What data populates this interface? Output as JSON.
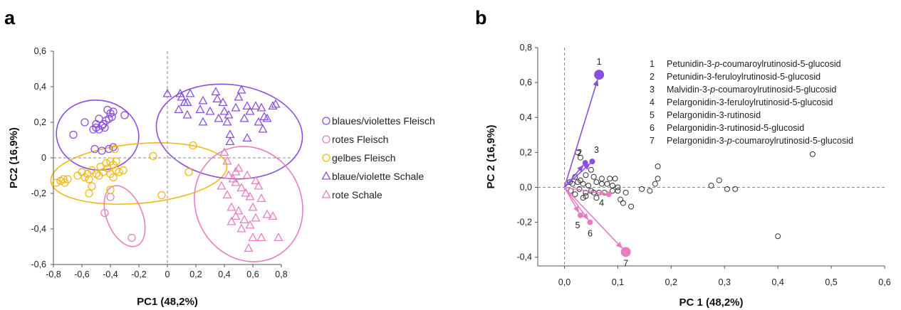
{
  "chart_data": [
    {
      "panel": "a",
      "type": "scatter",
      "xlabel": "PC1 (48,2%)",
      "ylabel": "PC2 (16,9%)",
      "xlim": [
        -0.8,
        0.8
      ],
      "ylim": [
        -0.6,
        0.6
      ],
      "xticks": [
        "-0,8",
        "-0,6",
        "-0,4",
        "-0,2",
        "0",
        "0,2",
        "0,4",
        "0,6",
        "0,8"
      ],
      "yticks": [
        "-0,6",
        "-0,4",
        "-0,2",
        "0",
        "0,2",
        "0,4",
        "0,6"
      ],
      "legend_position": "right",
      "series": [
        {
          "name": "blaues/violettes Fleisch",
          "marker": "circle",
          "color": "#8a4fe0",
          "points": [
            [
              -0.66,
              0.13
            ],
            [
              -0.58,
              0.2
            ],
            [
              -0.52,
              0.16
            ],
            [
              -0.5,
              0.17
            ],
            [
              -0.5,
              0.19
            ],
            [
              -0.48,
              0.16
            ],
            [
              -0.46,
              0.18
            ],
            [
              -0.45,
              0.19
            ],
            [
              -0.44,
              0.17
            ],
            [
              -0.43,
              0.21
            ],
            [
              -0.41,
              0.22
            ],
            [
              -0.4,
              0.25
            ],
            [
              -0.39,
              0.23
            ],
            [
              -0.42,
              0.27
            ],
            [
              -0.38,
              0.26
            ],
            [
              -0.3,
              0.24
            ],
            [
              -0.48,
              0.22
            ],
            [
              -0.51,
              0.05
            ],
            [
              -0.46,
              0.04
            ],
            [
              -0.38,
              0.06
            ],
            [
              -0.41,
              0.05
            ]
          ]
        },
        {
          "name": "rotes Fleisch",
          "marker": "circle",
          "color": "#e87ec0",
          "points": [
            [
              -0.4,
              -0.22
            ],
            [
              -0.44,
              -0.31
            ],
            [
              -0.25,
              -0.45
            ]
          ]
        },
        {
          "name": "gelbes Fleisch",
          "marker": "circle",
          "color": "#f2b816",
          "points": [
            [
              -0.78,
              -0.14
            ],
            [
              -0.75,
              -0.13
            ],
            [
              -0.73,
              -0.12
            ],
            [
              -0.72,
              -0.14
            ],
            [
              -0.7,
              -0.12
            ],
            [
              -0.63,
              -0.1
            ],
            [
              -0.6,
              -0.08
            ],
            [
              -0.58,
              -0.11
            ],
            [
              -0.56,
              -0.09
            ],
            [
              -0.55,
              -0.12
            ],
            [
              -0.53,
              -0.07
            ],
            [
              -0.5,
              -0.09
            ],
            [
              -0.48,
              -0.1
            ],
            [
              -0.47,
              -0.05
            ],
            [
              -0.45,
              -0.08
            ],
            [
              -0.42,
              -0.06
            ],
            [
              -0.4,
              -0.09
            ],
            [
              -0.38,
              -0.11
            ],
            [
              -0.36,
              -0.07
            ],
            [
              -0.34,
              -0.08
            ],
            [
              -0.31,
              -0.07
            ],
            [
              -0.55,
              -0.2
            ],
            [
              -0.53,
              -0.16
            ],
            [
              -0.4,
              -0.18
            ],
            [
              -0.43,
              -0.03
            ],
            [
              -0.4,
              -0.02
            ],
            [
              -0.38,
              -0.04
            ],
            [
              -0.37,
              0.05
            ],
            [
              -0.36,
              -0.02
            ],
            [
              -0.1,
              0.01
            ],
            [
              -0.04,
              -0.21
            ],
            [
              0.18,
              0.07
            ],
            [
              0.15,
              -0.08
            ]
          ]
        },
        {
          "name": "blaue/violette Schale",
          "marker": "triangle",
          "color": "#8a4fe0",
          "points": [
            [
              0.0,
              0.36
            ],
            [
              0.09,
              0.36
            ],
            [
              0.1,
              0.34
            ],
            [
              0.16,
              0.36
            ],
            [
              0.14,
              0.31
            ],
            [
              0.08,
              0.27
            ],
            [
              0.14,
              0.24
            ],
            [
              0.12,
              0.31
            ],
            [
              0.23,
              0.27
            ],
            [
              0.25,
              0.2
            ],
            [
              0.25,
              0.32
            ],
            [
              0.3,
              0.26
            ],
            [
              0.34,
              0.37
            ],
            [
              0.35,
              0.33
            ],
            [
              0.36,
              0.22
            ],
            [
              0.39,
              0.31
            ],
            [
              0.4,
              0.26
            ],
            [
              0.42,
              0.2
            ],
            [
              0.43,
              0.24
            ],
            [
              0.44,
              0.09
            ],
            [
              0.48,
              0.28
            ],
            [
              0.5,
              0.34
            ],
            [
              0.52,
              0.38
            ],
            [
              0.54,
              0.22
            ],
            [
              0.56,
              0.11
            ],
            [
              0.58,
              0.26
            ],
            [
              0.62,
              0.29
            ],
            [
              0.64,
              0.2
            ],
            [
              0.66,
              0.28
            ],
            [
              0.67,
              0.16
            ],
            [
              0.7,
              0.22
            ],
            [
              0.74,
              0.29
            ],
            [
              0.76,
              0.3
            ],
            [
              0.44,
              0.13
            ],
            [
              0.56,
              0.29
            ],
            [
              0.68,
              0.23
            ]
          ]
        },
        {
          "name": "rote Schale",
          "marker": "triangle",
          "color": "#e87ec0",
          "points": [
            [
              0.4,
              0.03
            ],
            [
              0.42,
              -0.02
            ],
            [
              0.5,
              -0.06
            ],
            [
              0.43,
              -0.1
            ],
            [
              0.46,
              -0.12
            ],
            [
              0.48,
              -0.14
            ],
            [
              0.52,
              -0.17
            ],
            [
              0.55,
              -0.2
            ],
            [
              0.58,
              -0.22
            ],
            [
              0.62,
              -0.13
            ],
            [
              0.64,
              -0.16
            ],
            [
              0.6,
              -0.28
            ],
            [
              0.66,
              -0.23
            ],
            [
              0.5,
              -0.3
            ],
            [
              0.54,
              -0.35
            ],
            [
              0.48,
              -0.33
            ],
            [
              0.52,
              -0.4
            ],
            [
              0.58,
              -0.38
            ],
            [
              0.62,
              -0.34
            ],
            [
              0.66,
              -0.45
            ],
            [
              0.7,
              -0.32
            ],
            [
              0.74,
              -0.33
            ],
            [
              0.78,
              -0.45
            ],
            [
              0.57,
              -0.51
            ],
            [
              0.45,
              -0.28
            ],
            [
              0.42,
              -0.21
            ],
            [
              0.38,
              -0.16
            ],
            [
              0.56,
              -0.1
            ],
            [
              0.48,
              -0.08
            ],
            [
              0.6,
              -0.45
            ],
            [
              0.45,
              -0.36
            ]
          ]
        }
      ]
    },
    {
      "panel": "b",
      "type": "biplot",
      "xlabel": "PC 1 (48,2%)",
      "ylabel": "PC 2 (16,9%)",
      "xlim": [
        -0.05,
        0.6
      ],
      "ylim": [
        -0.45,
        0.8
      ],
      "xticks": [
        "0,0",
        "0,1",
        "0,2",
        "0,3",
        "0,4",
        "0,5",
        "0,6"
      ],
      "yticks": [
        "-0,4",
        "-0,2",
        "0,0",
        "0,2",
        "0,4",
        "0,6",
        "0,8"
      ],
      "loadings": [
        {
          "id": "1",
          "label": "Petunidin-3-p-coumaroylrutinosid-5-glucosid",
          "x": 0.065,
          "y": 0.645,
          "color": "#8a4fe0"
        },
        {
          "id": "2",
          "label": "Petunidin-3-feruloylrutinosid-5-glucosid",
          "x": 0.039,
          "y": 0.14,
          "color": "#8a4fe0"
        },
        {
          "id": "3",
          "label": "Malvidin-3-p-coumaroylrutinosid-5-glucosid",
          "x": 0.052,
          "y": 0.148,
          "color": "#8a4fe0"
        },
        {
          "id": "4",
          "label": "Pelargonidin-3-feruloylrutinosid-5-glucosid",
          "x": 0.083,
          "y": -0.04,
          "color": "#e87ec0"
        },
        {
          "id": "5",
          "label": "Pelargonidin-3-rutinosid",
          "x": 0.03,
          "y": -0.16,
          "color": "#e87ec0"
        },
        {
          "id": "6",
          "label": "Pelargonidin-3-rutinosid-5-glucosid",
          "x": 0.048,
          "y": -0.2,
          "color": "#e87ec0"
        },
        {
          "id": "7",
          "label": "Pelargonidin-3-p-coumaroylrutinosid-5-glucosid",
          "x": 0.115,
          "y": -0.37,
          "color": "#e87ec0"
        }
      ],
      "other_variables": [
        [
          0.03,
          0.17
        ],
        [
          0.025,
          0.2
        ],
        [
          0.05,
          0.1
        ],
        [
          0.04,
          0.07
        ],
        [
          0.055,
          0.06
        ],
        [
          0.07,
          0.05
        ],
        [
          0.085,
          0.05
        ],
        [
          0.095,
          0.05
        ],
        [
          0.06,
          0.03
        ],
        [
          0.07,
          0.02
        ],
        [
          0.08,
          0.02
        ],
        [
          0.09,
          0.01
        ],
        [
          0.1,
          0.0
        ],
        [
          0.065,
          -0.03
        ],
        [
          0.075,
          -0.03
        ],
        [
          0.09,
          -0.02
        ],
        [
          0.1,
          -0.02
        ],
        [
          0.115,
          -0.03
        ],
        [
          0.11,
          -0.09
        ],
        [
          0.105,
          -0.07
        ],
        [
          0.125,
          -0.11
        ],
        [
          0.145,
          -0.01
        ],
        [
          0.17,
          0.02
        ],
        [
          0.175,
          0.05
        ],
        [
          0.175,
          0.12
        ],
        [
          0.16,
          -0.02
        ],
        [
          0.275,
          0.01
        ],
        [
          0.29,
          0.04
        ],
        [
          0.305,
          -0.01
        ],
        [
          0.32,
          -0.01
        ],
        [
          0.4,
          -0.28
        ],
        [
          0.465,
          0.19
        ],
        [
          0.035,
          -0.06
        ],
        [
          0.04,
          -0.03
        ],
        [
          0.045,
          0.01
        ],
        [
          0.03,
          0.04
        ],
        [
          0.05,
          -0.02
        ],
        [
          0.055,
          -0.03
        ],
        [
          0.06,
          -0.06
        ],
        [
          0.02,
          -0.04
        ],
        [
          0.015,
          0.02
        ],
        [
          0.01,
          0.03
        ],
        [
          0.012,
          -0.02
        ],
        [
          0.02,
          0.06
        ],
        [
          0.025,
          0.03
        ],
        [
          0.028,
          -0.01
        ],
        [
          0.035,
          0.02
        ],
        [
          0.04,
          -0.05
        ]
      ]
    }
  ],
  "panel_a_label": "a",
  "panel_b_label": "b",
  "legend_b_numbers": [
    "1",
    "2",
    "3",
    "4",
    "5",
    "6",
    "7"
  ]
}
